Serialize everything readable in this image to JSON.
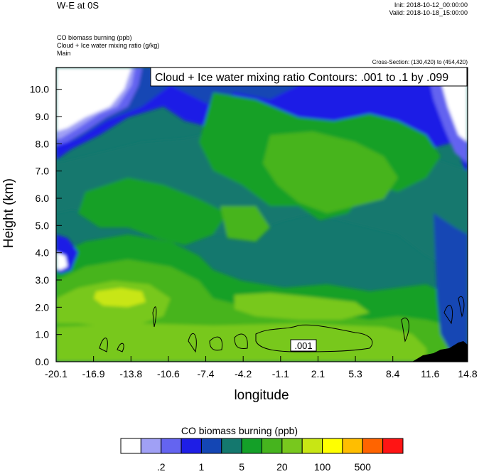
{
  "header": {
    "title": "W-E at 0S",
    "init": "Init: 2018-10-12_00:00:00",
    "valid": "Valid: 2018-10-18_15:00:00",
    "field1": "CO biomass burning   (ppb)",
    "field2": "Cloud + Ice water mixing ratio   (g/kg)",
    "field3": "Main",
    "cross_section": "Cross-Section: (130,420) to (454,420)"
  },
  "chart_data": {
    "type": "heatmap",
    "title": "Cloud + Ice water mixing ratio Contours: .001 to .1 by .099",
    "xlabel": "longitude",
    "ylabel": "Height (km)",
    "x_ticks": [
      "-20.1",
      "-16.9",
      "-13.8",
      "-10.6",
      "-7.4",
      "-4.2",
      "-1.1",
      "2.1",
      "5.3",
      "8.4",
      "11.6",
      "14.8"
    ],
    "y_ticks": [
      "0.0",
      "1.0",
      "2.0",
      "3.0",
      "4.0",
      "5.0",
      "6.0",
      "7.0",
      "8.0",
      "9.0",
      "10.0"
    ],
    "xlim": [
      -20.1,
      14.8
    ],
    "ylim": [
      0.0,
      10.8
    ],
    "contour_label": ".001",
    "colorbar": {
      "title": "CO biomass burning  (ppb)",
      "colors": [
        "#ffffff",
        "#a0a0f5",
        "#6464f0",
        "#1e1ee6",
        "#1446b4",
        "#14786e",
        "#14a028",
        "#46b41e",
        "#78c81e",
        "#c8e614",
        "#ffff00",
        "#ffbe00",
        "#ff6400",
        "#ff1414"
      ],
      "labels": [
        ".2",
        "1",
        "5",
        "20",
        "100",
        "500"
      ]
    }
  }
}
